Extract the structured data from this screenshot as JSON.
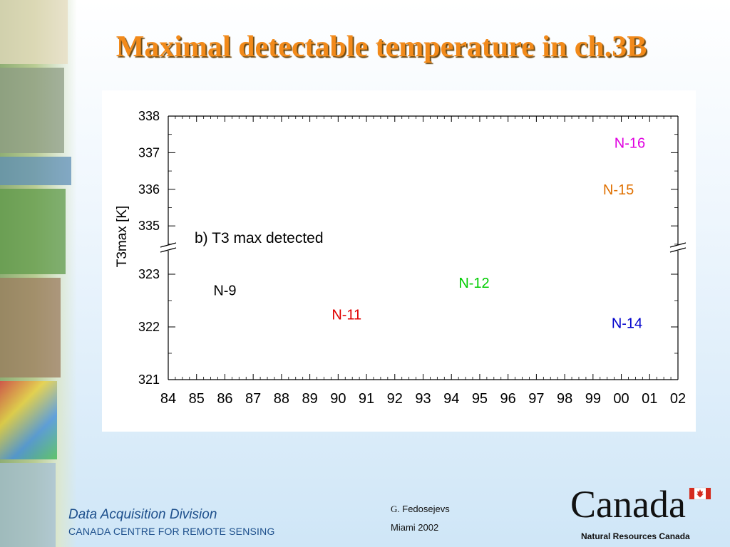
{
  "slide": {
    "title": "Maximal detectable temperature in ch.3B"
  },
  "footer": {
    "division": "Data Acquisition Division",
    "centre": "CANADA CENTRE FOR REMOTE SENSING",
    "author_initial": "G.",
    "author_name": " Fedosejevs",
    "venue": "Miami 2002",
    "logo_text": "Canada",
    "organization": "Natural Resources Canada"
  },
  "colors": {
    "title": "#f28a1a",
    "footer_text": "#1d4f8c",
    "flag_red": "#d52b1e"
  },
  "chart_data": {
    "type": "scatter",
    "title": "",
    "annotation": "b) T3 max detected",
    "ylabel": "T3max [K]",
    "xlabel": "",
    "x_ticks": [
      "84",
      "85",
      "86",
      "87",
      "88",
      "89",
      "90",
      "91",
      "92",
      "93",
      "94",
      "95",
      "96",
      "97",
      "98",
      "99",
      "00",
      "01",
      "02"
    ],
    "y_axis_broken": true,
    "y_lower_segment": {
      "range": [
        321,
        323.5
      ],
      "ticks": [
        321,
        322,
        323
      ]
    },
    "y_upper_segment": {
      "range": [
        334.4,
        338
      ],
      "ticks": [
        335,
        336,
        337,
        338
      ]
    },
    "grid": false,
    "points": [
      {
        "label": "N-9",
        "x": 86.0,
        "y": 322.6,
        "color": "#000000"
      },
      {
        "label": "N-11",
        "x": 90.3,
        "y": 322.14,
        "color": "#e00000"
      },
      {
        "label": "N-12",
        "x": 94.8,
        "y": 322.74,
        "color": "#00cc00"
      },
      {
        "label": "N-14",
        "x": 100.2,
        "y": 321.98,
        "color": "#0000cc"
      },
      {
        "label": "N-15",
        "x": 99.9,
        "y": 335.86,
        "color": "#e07000"
      },
      {
        "label": "N-16",
        "x": 100.3,
        "y": 337.13,
        "color": "#e000e0"
      }
    ]
  }
}
